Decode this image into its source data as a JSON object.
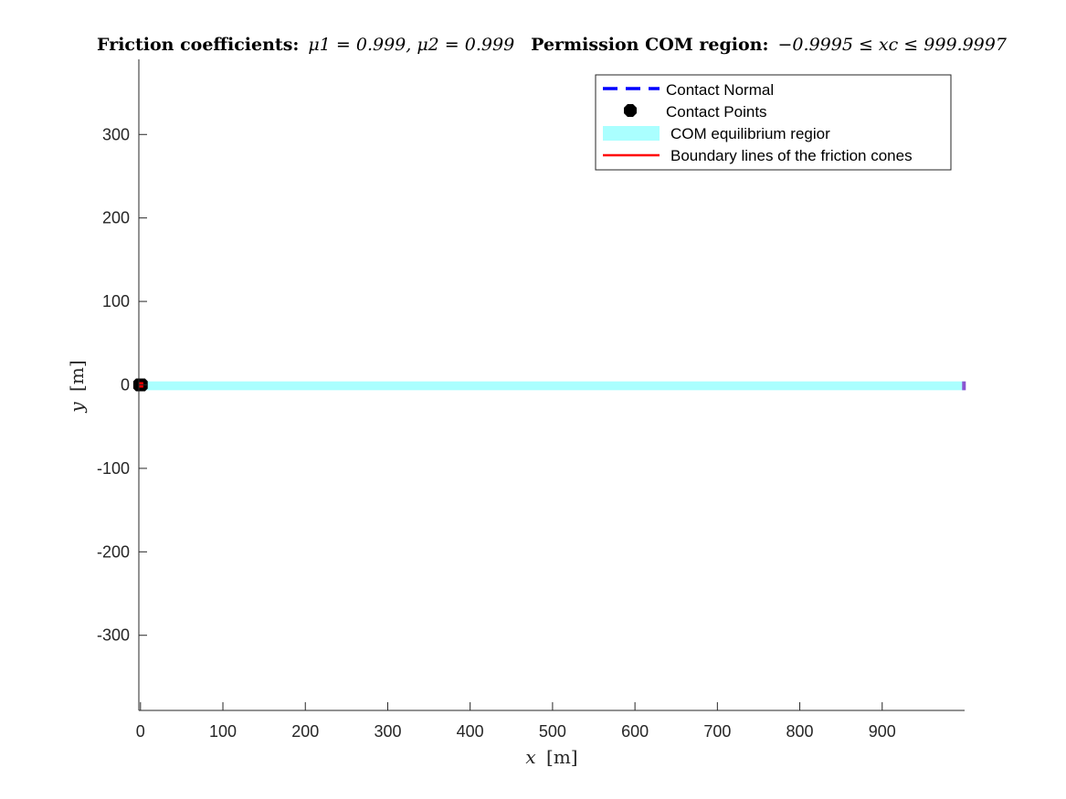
{
  "chart_data": {
    "type": "line",
    "title": {
      "part1": "Friction coefficients:",
      "part2": "μ1 = 0.999, μ2 = 0.999",
      "part3": "Permission COM region:",
      "part4": "−0.9995 ≤ xc ≤ 999.9997"
    },
    "xlabel": {
      "var": "x",
      "unit": "[m]"
    },
    "ylabel": {
      "var": "y",
      "unit": "[m]"
    },
    "xlim": [
      -2,
      1000
    ],
    "ylim": [
      -390,
      390
    ],
    "xticks": [
      0,
      100,
      200,
      300,
      400,
      500,
      600,
      700,
      800,
      900
    ],
    "xtick_labels": [
      "0",
      "100",
      "200",
      "300",
      "400",
      "500",
      "600",
      "700",
      "800",
      "900"
    ],
    "yticks": [
      -300,
      -200,
      -100,
      0,
      100,
      200,
      300
    ],
    "ytick_labels": [
      "-300",
      "-200",
      "-100",
      "0",
      "100",
      "200",
      "300"
    ],
    "grid": false,
    "legend_position": "top-right",
    "legend": [
      {
        "label": "Contact Normal",
        "style": "dashed",
        "color": "#0000ff"
      },
      {
        "label": "Contact Points",
        "style": "marker",
        "color": "#000000"
      },
      {
        "label": "COM equilibrium regior",
        "style": "patch",
        "color": "#aaffff"
      },
      {
        "label": "Boundary lines of the friction cones",
        "style": "solid",
        "color": "#ff0000"
      }
    ],
    "com_region": {
      "x": [
        -0.9995,
        999.9997
      ],
      "y": [
        -2,
        2
      ],
      "color": "#aaffff"
    },
    "end_marker": {
      "x": [
        997,
        1000
      ],
      "y": [
        -2,
        2
      ],
      "color": "#8a55d0"
    },
    "contact_points": [
      {
        "x": -1,
        "y": 0
      },
      {
        "x": 1,
        "y": 0
      }
    ],
    "contact_normals": [
      {
        "x": [
          -1,
          -1
        ],
        "y": [
          -3,
          3
        ]
      },
      {
        "x": [
          1,
          1
        ],
        "y": [
          -3,
          3
        ]
      }
    ],
    "friction_cone_lines": [
      {
        "x": [
          -1,
          1.5
        ],
        "y": [
          0,
          2.5
        ]
      },
      {
        "x": [
          -1,
          -3.5
        ],
        "y": [
          0,
          2.5
        ]
      },
      {
        "x": [
          1,
          3.5
        ],
        "y": [
          0,
          2.5
        ]
      },
      {
        "x": [
          1,
          -1.5
        ],
        "y": [
          0,
          2.5
        ]
      }
    ],
    "colors": {
      "axis": "#262626",
      "com_region": "#aaffff",
      "normal": "#0000ff",
      "boundary": "#ff0000",
      "points": "#000000"
    }
  }
}
